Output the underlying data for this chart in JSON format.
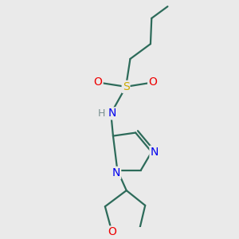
{
  "bg_color": "#eaeaea",
  "bond_color": "#2d6b5a",
  "nitrogen_color": "#0000ee",
  "oxygen_color": "#ee0000",
  "sulfur_color": "#ccaa00",
  "hydrogen_color": "#7a9090",
  "line_width": 1.6,
  "figsize": [
    3.0,
    3.0
  ],
  "dpi": 100,
  "xlim": [
    -1.4,
    1.4
  ],
  "ylim": [
    -2.2,
    2.0
  ]
}
